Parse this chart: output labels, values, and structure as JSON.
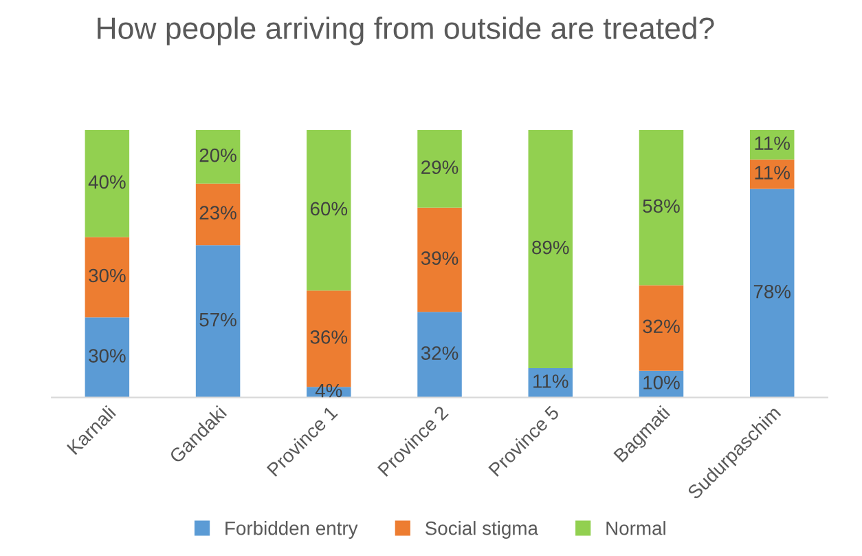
{
  "chart_data": {
    "type": "bar",
    "title": "How people arriving from outside are treated?",
    "stacked": true,
    "categories": [
      "Karnali",
      "Gandaki",
      "Province 1",
      "Province 2",
      "Province 5",
      "Bagmati",
      "Sudurpaschim"
    ],
    "series": [
      {
        "name": "Forbidden entry",
        "color": "#5b9bd5",
        "values": [
          30,
          57,
          4,
          32,
          11,
          10,
          78
        ],
        "value_labels": [
          "30%",
          "57%",
          "4%",
          "32%",
          "11%",
          "10%",
          "78%"
        ]
      },
      {
        "name": "Social stigma",
        "color": "#ed7d31",
        "values": [
          30,
          23,
          36,
          39,
          0,
          32,
          11
        ],
        "value_labels": [
          "30%",
          "23%",
          "36%",
          "39%",
          null,
          "32%",
          "11%"
        ]
      },
      {
        "name": "Normal",
        "color": "#92d050",
        "values": [
          40,
          20,
          60,
          29,
          89,
          58,
          11
        ],
        "value_labels": [
          "40%",
          "20%",
          "60%",
          "29%",
          "89%",
          "58%",
          "11%"
        ]
      }
    ],
    "legend": "bottom",
    "grid": false,
    "tick_labels": "x"
  }
}
